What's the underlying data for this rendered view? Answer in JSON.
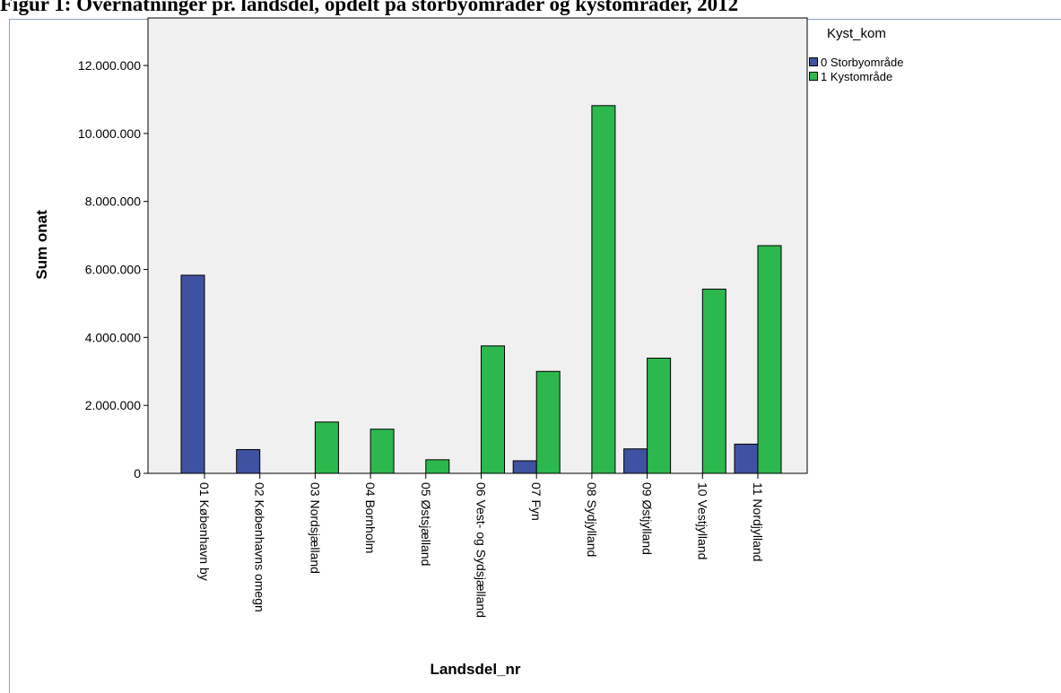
{
  "figure_title": "Figur 1: Overnatninger pr. landsdel, opdelt på storbyområder og kystområder, 2012",
  "legend": {
    "title": "Kyst_kom",
    "items": [
      {
        "label": "0 Storbyområde",
        "color": "#3f52a1"
      },
      {
        "label": "1 Kystområde",
        "color": "#2db84d"
      }
    ]
  },
  "chart_data": {
    "type": "bar",
    "title": "",
    "xlabel": "Landsdel_nr",
    "ylabel": "Sum onat",
    "ylim": [
      0,
      13400000
    ],
    "yticks": [
      0,
      2000000,
      4000000,
      6000000,
      8000000,
      10000000,
      12000000
    ],
    "ytick_labels": [
      "0",
      "2.000.000",
      "4.000.000",
      "6.000.000",
      "8.000.000",
      "10.000.000",
      "12.000.000"
    ],
    "categories": [
      "01 København by",
      "02 Københavns omegn",
      "03 Nordsjælland",
      "04 Bornholm",
      "05 Østsjælland",
      "06 Vest- og Sydsjælland",
      "07 Fyn",
      "08 Sydjylland",
      "09 Østjylland",
      "10 Vestjylland",
      "11 Nordjylland"
    ],
    "series": [
      {
        "name": "0 Storbyområde",
        "color": "#3f52a1",
        "values": [
          5830000,
          700000,
          null,
          null,
          null,
          null,
          370000,
          null,
          720000,
          null,
          860000
        ]
      },
      {
        "name": "1 Kystområde",
        "color": "#2db84d",
        "values": [
          null,
          null,
          1510000,
          1300000,
          400000,
          3750000,
          3000000,
          10820000,
          3390000,
          5420000,
          6700000
        ]
      }
    ],
    "grid": false,
    "legend_position": "top-right",
    "background": "#f0f0f0"
  }
}
